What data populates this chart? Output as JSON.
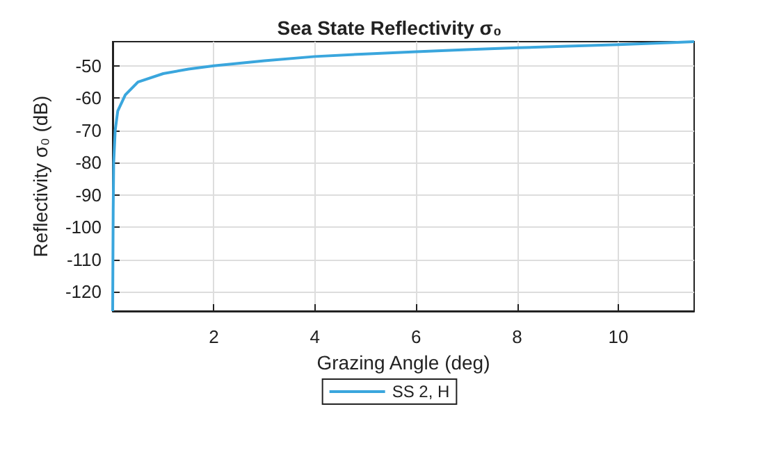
{
  "chart_data": {
    "type": "line",
    "title": "Sea State Reflectivity σ₀",
    "xlabel": "Grazing Angle (deg)",
    "ylabel": "Reflectivity σ₀ (dB)",
    "x": [
      0,
      0.005,
      0.01,
      0.02,
      0.05,
      0.1,
      0.25,
      0.5,
      1,
      1.5,
      2,
      3,
      4,
      5,
      6,
      7,
      8,
      9,
      10,
      11,
      11.5
    ],
    "series": [
      {
        "name": "SS 2, H",
        "color": "#3aa6dd",
        "values": [
          -126,
          -110,
          -95,
          -80,
          -70,
          -64,
          -59,
          -55,
          -52.4,
          -51,
          -50,
          -48.4,
          -47.1,
          -46.3,
          -45.6,
          -45,
          -44.4,
          -43.9,
          -43.4,
          -42.8,
          -42.5
        ]
      }
    ],
    "xlim": [
      0,
      11.5
    ],
    "ylim": [
      -126,
      -42.5
    ],
    "xticks": [
      2,
      4,
      6,
      8,
      10
    ],
    "yticks": [
      -120,
      -110,
      -100,
      -90,
      -80,
      -70,
      -60,
      -50
    ],
    "grid": true,
    "legend": "bottom",
    "marker": "none",
    "line_style": "solid"
  }
}
